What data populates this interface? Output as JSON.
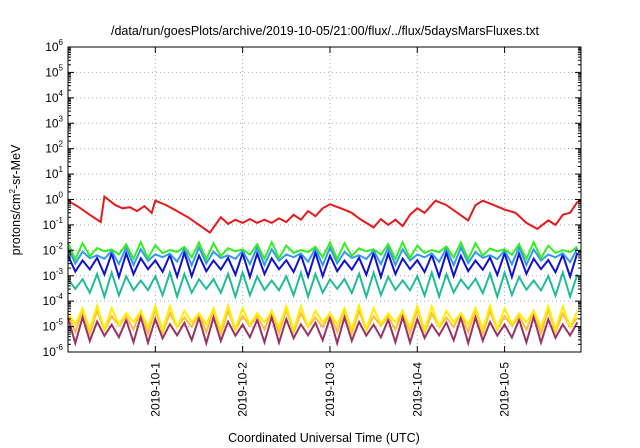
{
  "chart_data": {
    "type": "line",
    "title": "/data/run/goesPlots/archive/2019-10-05/21:00/flux/../flux/5daysMarsFluxes.txt",
    "xlabel": "Coordinated Universal Time (UTC)",
    "ylabel_parts": [
      "protons/cm",
      "2",
      "-sr-MeV"
    ],
    "y_scale": "log",
    "ylim": [
      1e-06,
      1000000.0
    ],
    "y_ticks": [
      {
        "base": "10",
        "exp": "-6",
        "value": 1e-06
      },
      {
        "base": "10",
        "exp": "-5",
        "value": 1e-05
      },
      {
        "base": "10",
        "exp": "-4",
        "value": 0.0001
      },
      {
        "base": "10",
        "exp": "-3",
        "value": 0.001
      },
      {
        "base": "10",
        "exp": "-2",
        "value": 0.01
      },
      {
        "base": "10",
        "exp": "-1",
        "value": 0.1
      },
      {
        "base": "10",
        "exp": "0",
        "value": 1
      },
      {
        "base": "10",
        "exp": "1",
        "value": 10
      },
      {
        "base": "10",
        "exp": "2",
        "value": 100
      },
      {
        "base": "10",
        "exp": "3",
        "value": 1000
      },
      {
        "base": "10",
        "exp": "4",
        "value": 10000
      },
      {
        "base": "10",
        "exp": "5",
        "value": 100000
      },
      {
        "base": "10",
        "exp": "6",
        "value": 1000000
      }
    ],
    "x_range": [
      "2019-09-30T00:00",
      "2019-10-05T21:00"
    ],
    "x_ticks": [
      "2019-10-1",
      "2019-10-2",
      "2019-10-3",
      "2019-10-4",
      "2019-10-5"
    ],
    "x_tick_dates": [
      "2019-10-01T00:00",
      "2019-10-02T00:00",
      "2019-10-03T00:00",
      "2019-10-04T00:00",
      "2019-10-05T00:00"
    ],
    "grid": true,
    "series": [
      {
        "color": "#e41a1c",
        "x": [
          "2019-09-30T00:00",
          "2019-09-30T03:00",
          "2019-09-30T06:00",
          "2019-09-30T09:00",
          "2019-09-30T10:00",
          "2019-09-30T13:00",
          "2019-09-30T15:00",
          "2019-09-30T17:00",
          "2019-09-30T19:00",
          "2019-09-30T21:00",
          "2019-09-30T23:00",
          "2019-10-01T00:00",
          "2019-10-01T03:00",
          "2019-10-01T06:00",
          "2019-10-01T09:00",
          "2019-10-01T12:00",
          "2019-10-01T15:00",
          "2019-10-01T18:00",
          "2019-10-01T20:00",
          "2019-10-01T22:00",
          "2019-10-02T00:00",
          "2019-10-02T02:00",
          "2019-10-02T04:00",
          "2019-10-02T06:00",
          "2019-10-02T08:00",
          "2019-10-02T10:00",
          "2019-10-02T12:00",
          "2019-10-02T14:00",
          "2019-10-02T16:00",
          "2019-10-02T18:00",
          "2019-10-02T20:00",
          "2019-10-02T22:00",
          "2019-10-03T00:00",
          "2019-10-03T03:00",
          "2019-10-03T06:00",
          "2019-10-03T08:00",
          "2019-10-03T10:00",
          "2019-10-03T12:00",
          "2019-10-03T14:00",
          "2019-10-03T16:00",
          "2019-10-03T18:00",
          "2019-10-03T20:00",
          "2019-10-03T22:00",
          "2019-10-04T00:00",
          "2019-10-04T02:00",
          "2019-10-04T05:00",
          "2019-10-04T08:00",
          "2019-10-04T11:00",
          "2019-10-04T14:00",
          "2019-10-04T16:00",
          "2019-10-04T18:00",
          "2019-10-04T21:00",
          "2019-10-05T00:00",
          "2019-10-05T03:00",
          "2019-10-05T06:00",
          "2019-10-05T09:00",
          "2019-10-05T12:00",
          "2019-10-05T14:00",
          "2019-10-05T16:00",
          "2019-10-05T18:00",
          "2019-10-05T20:00",
          "2019-10-05T21:00"
        ],
        "values": [
          0.9,
          0.5,
          0.25,
          0.13,
          1.3,
          0.6,
          0.45,
          0.5,
          0.35,
          0.55,
          0.3,
          0.9,
          0.6,
          0.35,
          0.2,
          0.1,
          0.05,
          0.2,
          0.11,
          0.16,
          0.12,
          0.17,
          0.12,
          0.16,
          0.12,
          0.18,
          0.13,
          0.25,
          0.16,
          0.35,
          0.22,
          0.45,
          0.65,
          0.45,
          0.3,
          0.18,
          0.12,
          0.08,
          0.17,
          0.1,
          0.16,
          0.09,
          0.25,
          0.45,
          0.3,
          0.9,
          0.6,
          0.3,
          0.15,
          0.6,
          0.9,
          0.6,
          0.4,
          0.3,
          0.12,
          0.07,
          0.15,
          0.1,
          0.25,
          0.3,
          0.8,
          0.9
        ]
      },
      {
        "color": "#33ee22",
        "base": 0.006,
        "amp": 2.6
      },
      {
        "color": "#3399ee",
        "base": 0.0035,
        "amp": 2.8
      },
      {
        "color": "#1111cc",
        "base": 0.0012,
        "amp": 5.0
      },
      {
        "color": "#22bb99",
        "base": 0.0002,
        "amp": 5.0
      },
      {
        "color": "#ffee00",
        "base": 1e-05,
        "amp": 5.0
      },
      {
        "color": "#ffbb44",
        "base": 7e-06,
        "amp": 5.0
      },
      {
        "color": "#993366",
        "base": 3e-06,
        "amp": 6.0
      }
    ]
  }
}
